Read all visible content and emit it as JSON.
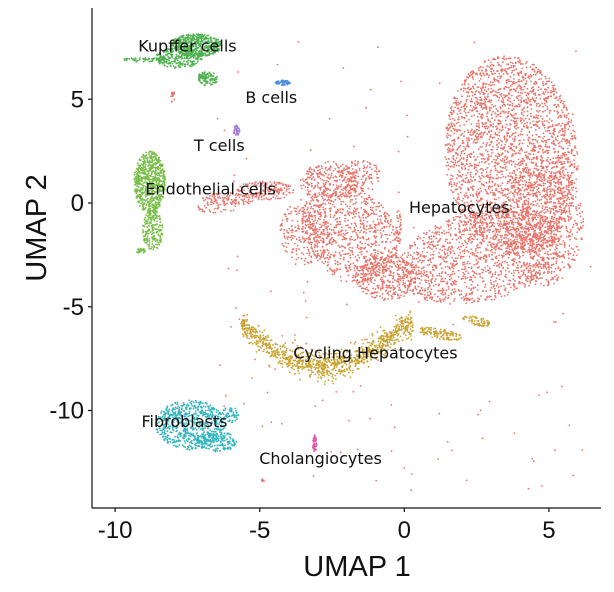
{
  "chart_data": {
    "type": "scatter",
    "xlabel": "UMAP 1",
    "ylabel": "UMAP 2",
    "xlim": [
      -10.8,
      6.8
    ],
    "ylim": [
      -14.7,
      9.4
    ],
    "x_ticks": [
      -10,
      -5,
      0,
      5
    ],
    "y_ticks": [
      5,
      0,
      -5,
      -10
    ],
    "x_tick_labels": [
      "-10",
      "-5",
      "0",
      "5"
    ],
    "y_tick_labels": [
      "5",
      "0",
      "-5",
      "-10"
    ],
    "grid": false,
    "legend": "none",
    "clusters": [
      {
        "label": "Hepatocytes",
        "color": "#e8756b",
        "label_x": 1.9,
        "label_y": -0.2
      },
      {
        "label": "Kupffer cells",
        "color": "#4fb050",
        "label_x": -7.5,
        "label_y": 7.6
      },
      {
        "label": "B cells",
        "color": "#4a8fe0",
        "label_x": -4.6,
        "label_y": 5.1
      },
      {
        "label": "T cells",
        "color": "#a07ad6",
        "label_x": -6.4,
        "label_y": 2.8
      },
      {
        "label": "Endothelial cells",
        "color": "#78bd46",
        "label_x": -6.7,
        "label_y": 0.7
      },
      {
        "label": "Cycling Hepatocytes",
        "color": "#c9a231",
        "label_x": -1.0,
        "label_y": -7.2
      },
      {
        "label": "Fibroblasts",
        "color": "#2fb5bf",
        "label_x": -7.6,
        "label_y": -10.5
      },
      {
        "label": "Cholangiocytes",
        "color": "#e05aa8",
        "label_x": -2.9,
        "label_y": -12.3
      }
    ]
  }
}
